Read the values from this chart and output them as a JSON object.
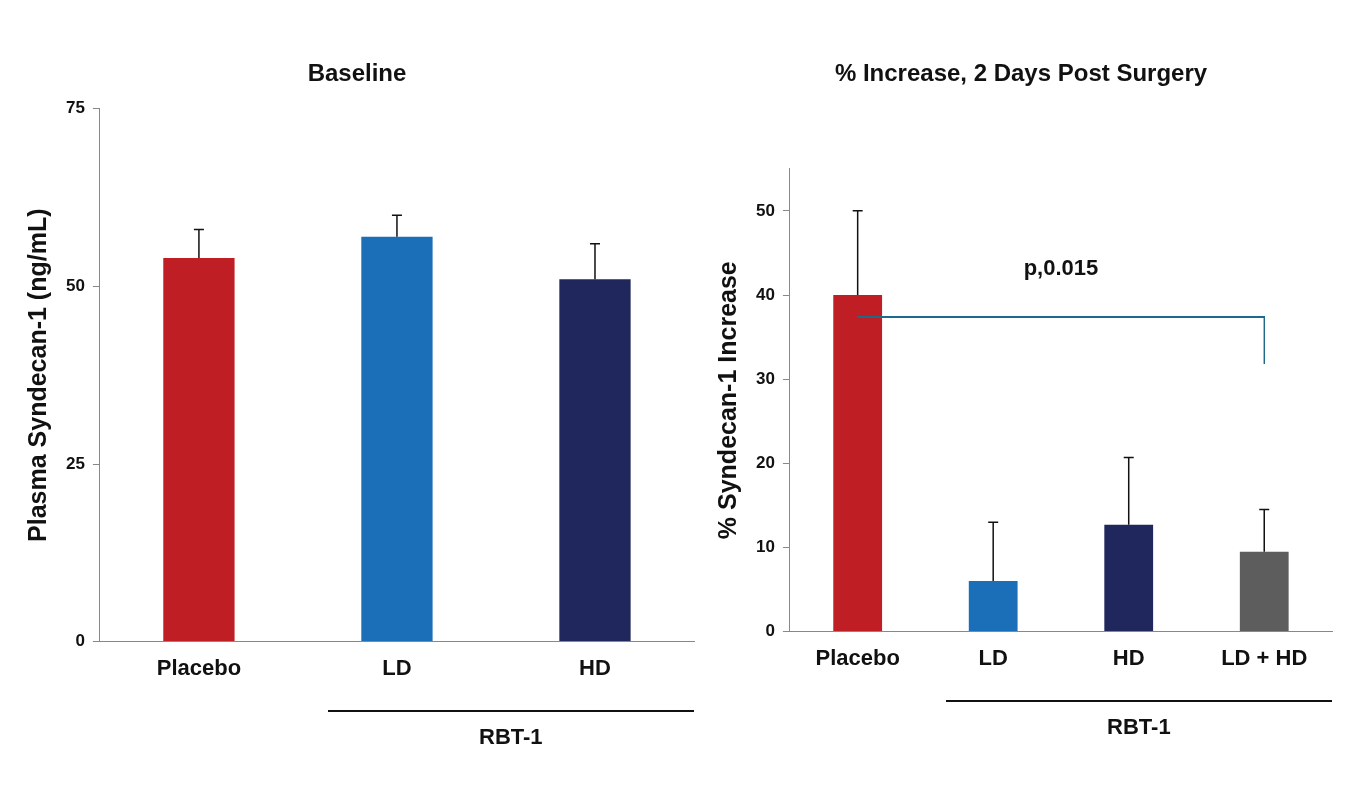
{
  "chart_data": [
    {
      "type": "bar",
      "title": "Baseline",
      "ylabel": "Plasma Syndecan-1 (ng/mL)",
      "categories": [
        "Placebo",
        "LD",
        "HD"
      ],
      "values": [
        54,
        57,
        51
      ],
      "colors": [
        "#be1e24",
        "#1b6fb8",
        "#1f275c"
      ],
      "errors": [
        [
          54,
          58
        ],
        [
          57,
          60
        ],
        [
          51,
          56
        ]
      ],
      "ylim": [
        0,
        75
      ],
      "yticks": [
        0,
        25,
        50,
        75
      ],
      "grid": false,
      "legend": false,
      "annotations": [
        "RBT-1"
      ]
    },
    {
      "type": "bar",
      "title": "% Increase, 2 Days Post Surgery",
      "ylabel": "% Syndecan-1 Increase",
      "categories": [
        "Placebo",
        "LD",
        "HD",
        "LD + HD"
      ],
      "values": [
        40,
        6,
        12.7,
        9.5
      ],
      "colors": [
        "#be1e24",
        "#1b6fb8",
        "#1f275c",
        "#5d5d5d"
      ],
      "errors": [
        [
          40,
          50
        ],
        [
          6,
          13
        ],
        [
          12.7,
          20.7
        ],
        [
          9.5,
          14.5
        ]
      ],
      "ylim": [
        0,
        55
      ],
      "yticks": [
        0,
        10,
        20,
        30,
        40,
        50
      ],
      "grid": false,
      "legend": false,
      "annotations": [
        "RBT-1",
        "p,0.015"
      ]
    }
  ]
}
